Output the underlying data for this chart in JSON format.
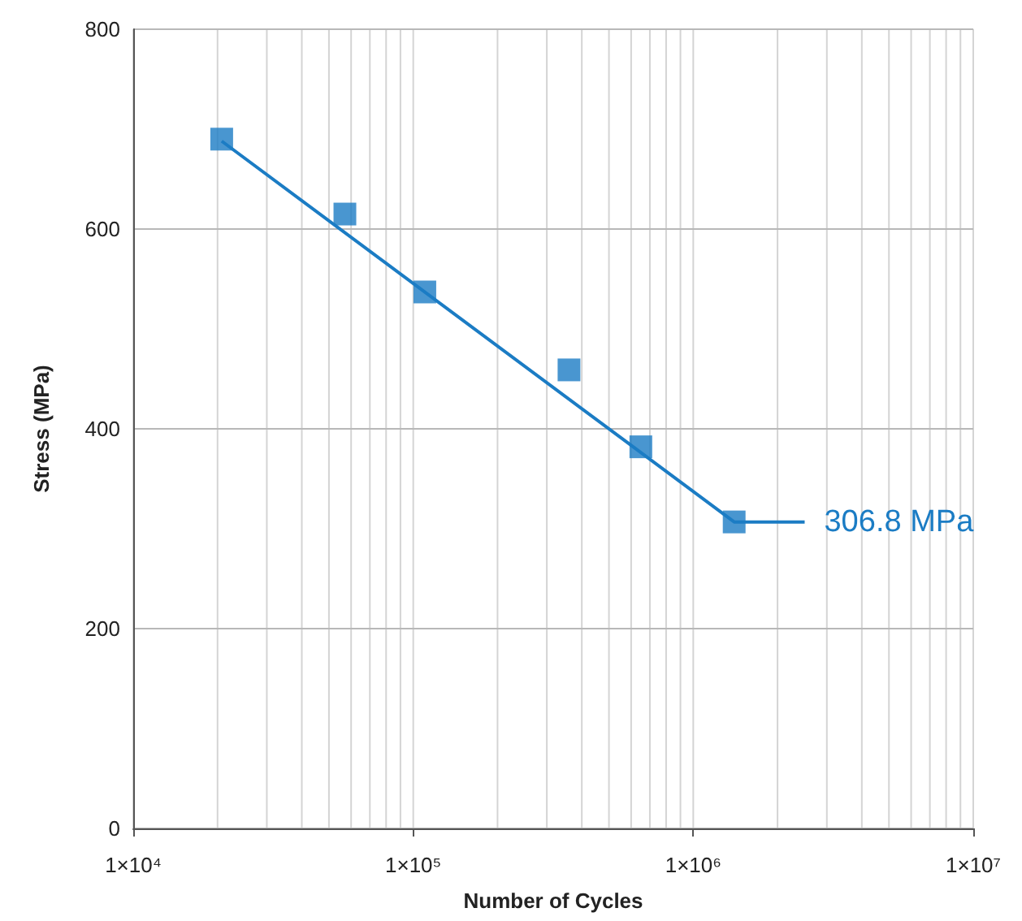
{
  "chart_data": {
    "type": "scatter",
    "xlabel": "Number of Cycles",
    "ylabel": "Stress (MPa)",
    "x": [
      20700,
      57000,
      110000,
      360000,
      650000,
      1400000
    ],
    "series": [
      {
        "type": "scatter",
        "color": "#1b7cc4",
        "marker": "square",
        "values": [
          690,
          615,
          537,
          459,
          382,
          306.8
        ]
      },
      {
        "type": "line",
        "color": "#1b7cc4",
        "marker": "none",
        "line_style": "solid",
        "x": [
          20700,
          1400000,
          2500000
        ],
        "values": [
          688,
          306.8,
          306.8
        ],
        "value_labels": [
          null,
          null,
          "306.8 MPa"
        ]
      }
    ],
    "log": "x",
    "xlim": [
      10000,
      10000000
    ],
    "ylim": [
      0,
      800
    ],
    "xticks": [
      {
        "value": 10000,
        "label": "1×10⁴"
      },
      {
        "value": 20000,
        "label": null
      },
      {
        "value": 30000,
        "label": null
      },
      {
        "value": 40000,
        "label": null
      },
      {
        "value": 50000,
        "label": null
      },
      {
        "value": 60000,
        "label": null
      },
      {
        "value": 70000,
        "label": null
      },
      {
        "value": 80000,
        "label": null
      },
      {
        "value": 90000,
        "label": null
      },
      {
        "value": 100000,
        "label": "1×10⁵"
      },
      {
        "value": 200000,
        "label": null
      },
      {
        "value": 300000,
        "label": null
      },
      {
        "value": 400000,
        "label": null
      },
      {
        "value": 500000,
        "label": null
      },
      {
        "value": 600000,
        "label": null
      },
      {
        "value": 700000,
        "label": null
      },
      {
        "value": 800000,
        "label": null
      },
      {
        "value": 900000,
        "label": null
      },
      {
        "value": 1000000,
        "label": "1×10⁶"
      },
      {
        "value": 2000000,
        "label": null
      },
      {
        "value": 3000000,
        "label": null
      },
      {
        "value": 4000000,
        "label": null
      },
      {
        "value": 5000000,
        "label": null
      },
      {
        "value": 6000000,
        "label": null
      },
      {
        "value": 7000000,
        "label": null
      },
      {
        "value": 8000000,
        "label": null
      },
      {
        "value": 9000000,
        "label": null
      },
      {
        "value": 10000000,
        "label": "1×10⁷"
      }
    ],
    "yticks": [
      0,
      200,
      400,
      600,
      800
    ],
    "grid": true
  }
}
